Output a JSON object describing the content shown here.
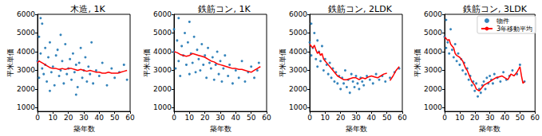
{
  "chart_data": [
    {
      "type": "scatter",
      "title": "木造, 1K",
      "x_label": "築年数",
      "y_label": "平米単価",
      "xlim": [
        0,
        60
      ],
      "ylim": [
        800,
        6000
      ],
      "xticks": [
        0,
        10,
        20,
        30,
        40,
        50,
        60
      ],
      "yticks": [
        1000,
        2000,
        3000,
        4000,
        5000,
        6000
      ],
      "grid": false,
      "series": [
        {
          "type": "scatter",
          "color": "#1f77b4",
          "marker": "circle",
          "x": [
            0,
            1,
            1,
            2,
            2,
            3,
            3,
            4,
            5,
            5,
            6,
            7,
            8,
            8,
            9,
            10,
            11,
            12,
            13,
            14,
            15,
            15,
            16,
            17,
            18,
            19,
            20,
            21,
            22,
            23,
            24,
            25,
            25,
            26,
            27,
            28,
            29,
            30,
            31,
            32,
            33,
            34,
            35,
            36,
            38,
            40,
            42,
            45,
            48,
            50,
            53,
            56,
            58
          ],
          "values": [
            3500,
            4800,
            2600,
            3900,
            5800,
            3100,
            5500,
            2800,
            4200,
            3300,
            2400,
            3700,
            4500,
            1900,
            2900,
            3200,
            2200,
            3800,
            4100,
            2700,
            3000,
            4900,
            3500,
            2300,
            4400,
            2800,
            3100,
            3600,
            2500,
            3900,
            2900,
            3300,
            1700,
            2100,
            3400,
            4200,
            2600,
            3000,
            3700,
            2400,
            3200,
            2800,
            4500,
            2300,
            3000,
            2700,
            3400,
            2200,
            3100,
            2600,
            2900,
            3300,
            2500
          ]
        },
        {
          "type": "line",
          "color": "#ff0000",
          "line_style": "solid",
          "x": [
            0,
            1,
            2,
            4,
            6,
            8,
            10,
            12,
            14,
            16,
            18,
            20,
            22,
            24,
            26,
            28,
            30,
            32,
            34,
            36,
            38,
            40,
            42,
            44,
            46,
            48,
            50,
            52,
            54,
            56,
            58
          ],
          "values": [
            3400,
            3500,
            3450,
            3350,
            3250,
            3150,
            3100,
            3100,
            3050,
            3100,
            3050,
            3100,
            3100,
            3050,
            3000,
            3050,
            3000,
            2950,
            3000,
            2950,
            2900,
            2900,
            2850,
            2850,
            2900,
            2850,
            2850,
            2850,
            2900,
            2950,
            3000
          ]
        }
      ]
    },
    {
      "type": "scatter",
      "title": "鉄筋コン, 1K",
      "x_label": "築年数",
      "y_label": "平米単価",
      "xlim": [
        0,
        60
      ],
      "ylim": [
        800,
        6000
      ],
      "xticks": [
        0,
        10,
        20,
        30,
        40,
        50,
        60
      ],
      "yticks": [
        1000,
        2000,
        3000,
        4000,
        5000,
        6000
      ],
      "grid": false,
      "series": [
        {
          "type": "scatter",
          "color": "#1f77b4",
          "marker": "circle",
          "x": [
            0,
            0,
            1,
            2,
            3,
            3,
            4,
            5,
            6,
            7,
            8,
            9,
            10,
            10,
            11,
            12,
            13,
            14,
            15,
            16,
            17,
            18,
            19,
            20,
            21,
            22,
            23,
            24,
            25,
            26,
            27,
            28,
            29,
            30,
            31,
            32,
            33,
            35,
            36,
            38,
            40,
            42,
            44,
            46,
            48,
            50,
            52,
            54,
            55
          ],
          "values": [
            4000,
            5200,
            3100,
            4600,
            3500,
            5800,
            2700,
            4300,
            3800,
            5000,
            3300,
            4500,
            2800,
            5600,
            3900,
            3400,
            4800,
            2900,
            4100,
            3600,
            3000,
            4400,
            3300,
            3800,
            2600,
            4200,
            3400,
            3100,
            3700,
            2500,
            3300,
            4000,
            2800,
            3500,
            2400,
            3100,
            3800,
            2700,
            3300,
            2300,
            3000,
            2600,
            3500,
            2400,
            2900,
            3200,
            2600,
            3000,
            3400
          ]
        },
        {
          "type": "line",
          "color": "#ff0000",
          "line_style": "solid",
          "x": [
            0,
            2,
            4,
            6,
            8,
            10,
            12,
            14,
            16,
            18,
            20,
            22,
            24,
            26,
            28,
            30,
            32,
            34,
            36,
            38,
            40,
            42,
            44,
            46,
            48,
            50,
            52,
            54,
            56
          ],
          "values": [
            4000,
            3950,
            3850,
            3800,
            3750,
            3800,
            3900,
            3850,
            3800,
            3750,
            3700,
            3600,
            3500,
            3450,
            3350,
            3300,
            3250,
            3200,
            3150,
            3100,
            3100,
            3050,
            3050,
            3000,
            2950,
            2900,
            3000,
            3100,
            3200
          ]
        }
      ]
    },
    {
      "type": "scatter",
      "title": "鉄筋コン, 2LDK",
      "x_label": "築年数",
      "y_label": "平米単価",
      "xlim": [
        0,
        60
      ],
      "ylim": [
        800,
        6000
      ],
      "xticks": [
        0,
        10,
        20,
        30,
        40,
        50,
        60
      ],
      "yticks": [
        1000,
        2000,
        3000,
        4000,
        5000,
        6000
      ],
      "grid": false,
      "series": [
        {
          "type": "scatter",
          "color": "#1f77b4",
          "marker": "circle",
          "x": [
            0,
            1,
            1,
            2,
            3,
            4,
            5,
            5,
            6,
            7,
            8,
            9,
            10,
            11,
            12,
            13,
            14,
            15,
            16,
            17,
            18,
            19,
            20,
            21,
            22,
            23,
            24,
            25,
            26,
            27,
            28,
            29,
            30,
            31,
            32,
            33,
            34,
            35,
            37,
            39,
            41,
            43,
            45,
            47,
            49,
            52,
            55,
            58
          ],
          "values": [
            4500,
            5500,
            3800,
            4200,
            5000,
            3600,
            4600,
            3200,
            4000,
            3500,
            4300,
            3000,
            3600,
            3300,
            2800,
            3400,
            2600,
            3100,
            2400,
            2900,
            2300,
            2700,
            2000,
            2600,
            2300,
            3000,
            2100,
            2500,
            1800,
            2800,
            2400,
            2100,
            2700,
            2300,
            2000,
            2600,
            2400,
            2200,
            2700,
            2500,
            2300,
            2800,
            2500,
            2700,
            2400,
            2600,
            2900,
            3100
          ]
        },
        {
          "type": "line",
          "color": "#ff0000",
          "line_style": "solid",
          "x": [
            0,
            1,
            2,
            3,
            4,
            5,
            6,
            7,
            8,
            9,
            10,
            12,
            14,
            16,
            18,
            20,
            22,
            24,
            26,
            28,
            30,
            32,
            34,
            36,
            38,
            40,
            42,
            44,
            46,
            48,
            50,
            51,
            52,
            54,
            56,
            58
          ],
          "values": [
            4400,
            4300,
            4200,
            4350,
            4100,
            3900,
            4000,
            3800,
            3900,
            3600,
            3500,
            3300,
            3100,
            2900,
            2700,
            2600,
            2500,
            2500,
            2550,
            2600,
            2600,
            2500,
            2600,
            2550,
            2650,
            2700,
            2650,
            2600,
            2700,
            2800,
            2850,
            null,
            2450,
            2700,
            3000,
            3200
          ]
        }
      ]
    },
    {
      "type": "scatter",
      "title": "鉄筋コン, 3LDK",
      "x_label": "築年数",
      "y_label": "平米単価",
      "xlim": [
        0,
        60
      ],
      "ylim": [
        800,
        6000
      ],
      "xticks": [
        0,
        10,
        20,
        30,
        40,
        50,
        60
      ],
      "yticks": [
        1000,
        2000,
        3000,
        4000,
        5000,
        6000
      ],
      "grid": false,
      "legend": "upper right",
      "series": [
        {
          "name": "物件",
          "type": "scatter",
          "color": "#1f77b4",
          "marker": "circle",
          "x": [
            0,
            1,
            1,
            2,
            3,
            4,
            5,
            6,
            7,
            8,
            9,
            10,
            11,
            12,
            13,
            14,
            15,
            16,
            17,
            18,
            19,
            20,
            21,
            22,
            23,
            24,
            25,
            26,
            27,
            28,
            29,
            30,
            31,
            32,
            33,
            35,
            37,
            39,
            41,
            43,
            45,
            48,
            50,
            53
          ],
          "values": [
            4800,
            5700,
            4200,
            4500,
            3900,
            5200,
            4100,
            3700,
            4400,
            3500,
            3900,
            3300,
            3600,
            3000,
            3400,
            2800,
            3100,
            2500,
            2700,
            2200,
            2400,
            1900,
            2300,
            1600,
            2000,
            1800,
            2200,
            2400,
            2000,
            2600,
            2300,
            2700,
            2500,
            2300,
            2800,
            2600,
            2400,
            2900,
            2500,
            2700,
            3000,
            2800,
            3300,
            2400
          ]
        },
        {
          "name": "3年移動平均",
          "type": "line",
          "color": "#ff0000",
          "line_style": "solid",
          "x": [
            0,
            1,
            2,
            3,
            4,
            5,
            6,
            7,
            8,
            9,
            10,
            11,
            12,
            13,
            14,
            15,
            16,
            17,
            18,
            19,
            20,
            21,
            22,
            23,
            24,
            26,
            28,
            30,
            32,
            34,
            36,
            38,
            40,
            42,
            44,
            46,
            48,
            50,
            51,
            52,
            53
          ],
          "values": [
            4800,
            4700,
            4600,
            4650,
            4400,
            4300,
            4200,
            3900,
            3800,
            3750,
            3700,
            3600,
            3500,
            3300,
            3100,
            3000,
            2800,
            2600,
            2400,
            2300,
            2200,
            2000,
            1950,
            1900,
            2000,
            2200,
            2300,
            2400,
            2500,
            2600,
            2650,
            2700,
            2600,
            2500,
            2800,
            2700,
            2900,
            3200,
            2700,
            2300,
            2400
          ]
        }
      ]
    }
  ]
}
